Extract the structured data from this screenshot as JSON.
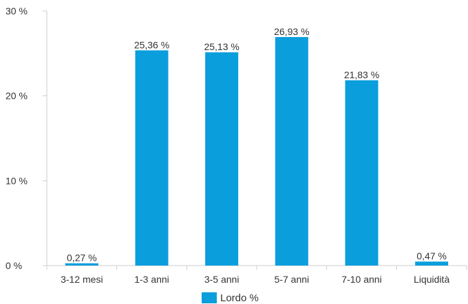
{
  "chart_data": {
    "type": "bar",
    "categories": [
      "3-12 mesi",
      "1-3 anni",
      "3-5 anni",
      "5-7 anni",
      "7-10 anni",
      "Liquidità"
    ],
    "series": [
      {
        "name": "Lordo %",
        "values": [
          0.27,
          25.36,
          25.13,
          26.93,
          21.83,
          0.47
        ],
        "labels": [
          "0,27 %",
          "25,36 %",
          "25,13 %",
          "26,93 %",
          "21,83 %",
          "0,47 %"
        ],
        "color": "#0a9edc"
      }
    ],
    "ylim": [
      0,
      30
    ],
    "yticks": [
      0,
      10,
      20,
      30
    ],
    "ytick_labels": [
      "0 %",
      "10 %",
      "20 %",
      "30 %"
    ],
    "title": "",
    "xlabel": "",
    "ylabel": "",
    "grid": false,
    "legend": {
      "position": "bottom-center"
    },
    "axis_color": "#cccccc"
  }
}
